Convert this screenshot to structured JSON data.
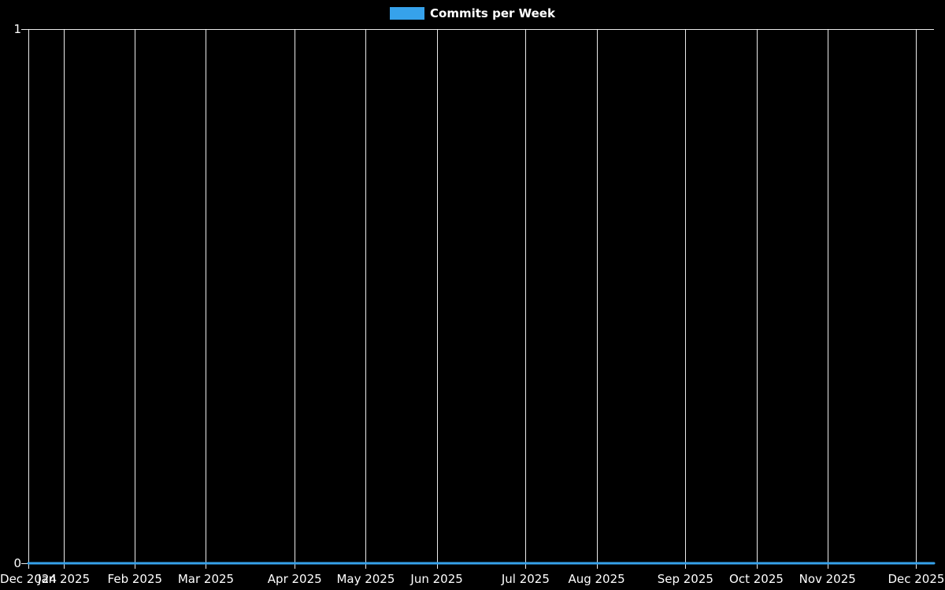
{
  "legend": {
    "label": "Commits per Week"
  },
  "colors": {
    "background": "#000000",
    "grid": "rgba(255,255,255,0.92)",
    "text": "#ffffff",
    "series": "#36a2eb"
  },
  "chart_data": {
    "type": "line",
    "title": "",
    "legend_entries": [
      "Commits per Week"
    ],
    "legend_position": "top-center",
    "xlabel": "",
    "ylabel": "",
    "ylim": [
      0,
      1
    ],
    "y_tick_labels": [
      "0",
      "1"
    ],
    "y_tick_values": [
      0,
      1
    ],
    "grid": true,
    "weeks_total": 52,
    "x_tick_labels": [
      "Dec 2024",
      "Jan 2025",
      "Feb 2025",
      "Mar 2025",
      "Apr 2025",
      "May 2025",
      "Jun 2025",
      "Jul 2025",
      "Aug 2025",
      "Sep 2025",
      "Oct 2025",
      "Nov 2025",
      "Dec 2025"
    ],
    "x_tick_week_index": [
      0,
      2,
      6,
      10,
      15,
      19,
      23,
      28,
      32,
      37,
      41,
      45,
      50
    ],
    "series": [
      {
        "name": "Commits per Week",
        "color": "#36a2eb",
        "values": [
          0,
          0,
          0,
          0,
          0,
          0,
          0,
          0,
          0,
          0,
          0,
          0,
          0,
          0,
          0,
          0,
          0,
          0,
          0,
          0,
          0,
          0,
          0,
          0,
          0,
          0,
          0,
          0,
          0,
          0,
          0,
          0,
          0,
          0,
          0,
          0,
          0,
          0,
          0,
          0,
          0,
          0,
          0,
          0,
          0,
          0,
          0,
          0,
          0,
          0,
          0,
          0
        ]
      }
    ]
  }
}
